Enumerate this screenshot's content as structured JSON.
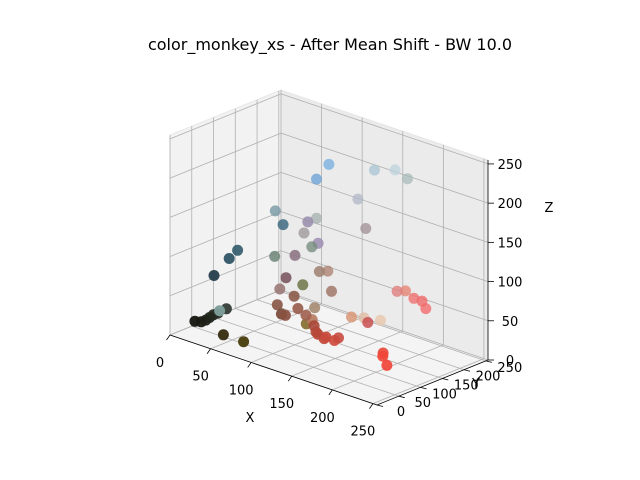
{
  "chart_data": {
    "type": "scatter",
    "title": "color_monkey_xs - After Mean Shift - BW 10.0",
    "xlabel": "X",
    "ylabel": "Y",
    "zlabel": "Z",
    "xlim": [
      0,
      255
    ],
    "ylim": [
      0,
      255
    ],
    "zlim": [
      0,
      255
    ],
    "xticks": [
      "0",
      "50",
      "100",
      "150",
      "200",
      "250"
    ],
    "yticks": [
      "0",
      "50",
      "100",
      "150",
      "200",
      "250"
    ],
    "zticks": [
      "0",
      "50",
      "100",
      "150",
      "200",
      "250"
    ],
    "grid": true,
    "points": [
      {
        "x": 20,
        "y": 20,
        "z": 20,
        "color": "#1a1a14"
      },
      {
        "x": 25,
        "y": 25,
        "z": 20,
        "color": "#1e2018"
      },
      {
        "x": 28,
        "y": 30,
        "z": 22,
        "color": "#20241c"
      },
      {
        "x": 30,
        "y": 35,
        "z": 25,
        "color": "#23281f"
      },
      {
        "x": 32,
        "y": 40,
        "z": 28,
        "color": "#262c24"
      },
      {
        "x": 35,
        "y": 45,
        "z": 30,
        "color": "#2a3028"
      },
      {
        "x": 40,
        "y": 55,
        "z": 35,
        "color": "#2e3830"
      },
      {
        "x": 22,
        "y": 60,
        "z": 70,
        "color": "#1f3a48"
      },
      {
        "x": 30,
        "y": 80,
        "z": 90,
        "color": "#234b5c"
      },
      {
        "x": 35,
        "y": 90,
        "z": 100,
        "color": "#2a5566"
      },
      {
        "x": 45,
        "y": 30,
        "z": 40,
        "color": "#7f9f9a"
      },
      {
        "x": 55,
        "y": 20,
        "z": 15,
        "color": "#3a3012"
      },
      {
        "x": 80,
        "y": 20,
        "z": 15,
        "color": "#4b4010"
      },
      {
        "x": 75,
        "y": 120,
        "z": 140,
        "color": "#3e6980"
      },
      {
        "x": 60,
        "y": 130,
        "z": 150,
        "color": "#7a9aa6"
      },
      {
        "x": 70,
        "y": 110,
        "z": 100,
        "color": "#6f8578"
      },
      {
        "x": 100,
        "y": 150,
        "z": 200,
        "color": "#6aa3d6"
      },
      {
        "x": 110,
        "y": 160,
        "z": 220,
        "color": "#78b0e0"
      },
      {
        "x": 150,
        "y": 190,
        "z": 220,
        "color": "#a8c4d4"
      },
      {
        "x": 170,
        "y": 200,
        "z": 225,
        "color": "#bcd2dc"
      },
      {
        "x": 180,
        "y": 210,
        "z": 215,
        "color": "#a6b8b8"
      },
      {
        "x": 135,
        "y": 180,
        "z": 180,
        "color": "#b2b7c8"
      },
      {
        "x": 150,
        "y": 170,
        "z": 150,
        "color": "#a09096"
      },
      {
        "x": 100,
        "y": 150,
        "z": 150,
        "color": "#a8b0b0"
      },
      {
        "x": 100,
        "y": 130,
        "z": 150,
        "color": "#9488aa"
      },
      {
        "x": 90,
        "y": 140,
        "z": 130,
        "color": "#a09a9c"
      },
      {
        "x": 105,
        "y": 130,
        "z": 120,
        "color": "#7a8f80"
      },
      {
        "x": 95,
        "y": 110,
        "z": 110,
        "color": "#8a7080"
      },
      {
        "x": 110,
        "y": 135,
        "z": 125,
        "color": "#9a8ab0"
      },
      {
        "x": 130,
        "y": 120,
        "z": 100,
        "color": "#b08878"
      },
      {
        "x": 110,
        "y": 100,
        "z": 80,
        "color": "#70784a"
      },
      {
        "x": 125,
        "y": 110,
        "z": 100,
        "color": "#9f8070"
      },
      {
        "x": 140,
        "y": 110,
        "z": 80,
        "color": "#a07868"
      },
      {
        "x": 100,
        "y": 80,
        "z": 90,
        "color": "#7a5560"
      },
      {
        "x": 110,
        "y": 80,
        "z": 70,
        "color": "#8a5a48"
      },
      {
        "x": 95,
        "y": 75,
        "z": 75,
        "color": "#9a7a78"
      },
      {
        "x": 130,
        "y": 90,
        "z": 60,
        "color": "#a48870"
      },
      {
        "x": 100,
        "y": 60,
        "z": 60,
        "color": "#8a5848"
      },
      {
        "x": 105,
        "y": 60,
        "z": 50,
        "color": "#7a4a3a"
      },
      {
        "x": 110,
        "y": 60,
        "z": 50,
        "color": "#8a5040"
      },
      {
        "x": 120,
        "y": 70,
        "z": 60,
        "color": "#985a48"
      },
      {
        "x": 130,
        "y": 70,
        "z": 55,
        "color": "#a06050"
      },
      {
        "x": 125,
        "y": 80,
        "z": 40,
        "color": "#806a28"
      },
      {
        "x": 135,
        "y": 75,
        "z": 50,
        "color": "#b87a60"
      },
      {
        "x": 140,
        "y": 70,
        "z": 45,
        "color": "#a84838"
      },
      {
        "x": 145,
        "y": 65,
        "z": 40,
        "color": "#b04838"
      },
      {
        "x": 150,
        "y": 60,
        "z": 40,
        "color": "#b84838"
      },
      {
        "x": 155,
        "y": 65,
        "z": 35,
        "color": "#c04638"
      },
      {
        "x": 160,
        "y": 60,
        "z": 40,
        "color": "#c84a3c"
      },
      {
        "x": 165,
        "y": 70,
        "z": 35,
        "color": "#d04a3a"
      },
      {
        "x": 170,
        "y": 70,
        "z": 40,
        "color": "#c84a40"
      },
      {
        "x": 170,
        "y": 100,
        "z": 60,
        "color": "#d89878"
      },
      {
        "x": 180,
        "y": 110,
        "z": 60,
        "color": "#e0c0a8"
      },
      {
        "x": 195,
        "y": 120,
        "z": 60,
        "color": "#e8c8b0"
      },
      {
        "x": 190,
        "y": 100,
        "z": 60,
        "color": "#c85050"
      },
      {
        "x": 210,
        "y": 130,
        "z": 100,
        "color": "#e08080"
      },
      {
        "x": 215,
        "y": 140,
        "z": 100,
        "color": "#e88878"
      },
      {
        "x": 220,
        "y": 150,
        "z": 90,
        "color": "#f07070"
      },
      {
        "x": 230,
        "y": 150,
        "z": 90,
        "color": "#f06868"
      },
      {
        "x": 232,
        "y": 155,
        "z": 80,
        "color": "#f46a6a"
      },
      {
        "x": 225,
        "y": 70,
        "z": 40,
        "color": "#e84838"
      },
      {
        "x": 230,
        "y": 60,
        "z": 40,
        "color": "#f04838"
      },
      {
        "x": 235,
        "y": 60,
        "z": 30,
        "color": "#f0443a"
      }
    ]
  }
}
